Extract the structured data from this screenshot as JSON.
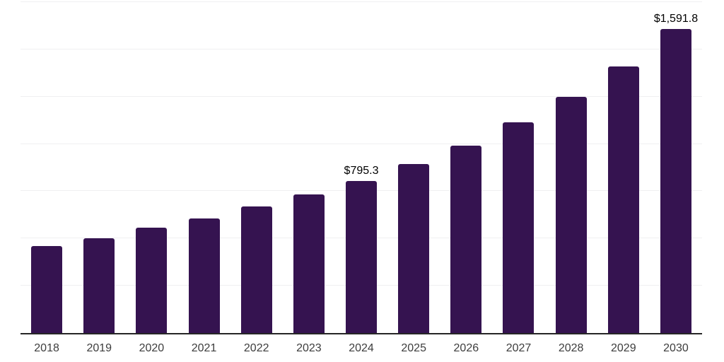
{
  "chart_data": {
    "type": "bar",
    "categories": [
      "2018",
      "2019",
      "2020",
      "2021",
      "2022",
      "2023",
      "2024",
      "2025",
      "2026",
      "2027",
      "2028",
      "2029",
      "2030"
    ],
    "values": [
      456.7,
      497.4,
      553.0,
      600.2,
      663.5,
      727.4,
      795.3,
      885.2,
      983.3,
      1103.0,
      1235.9,
      1397.4,
      1591.8
    ],
    "data_labels": [
      {
        "category": "2024",
        "text": "$795.3"
      },
      {
        "category": "2030",
        "text": "$1,591.8"
      }
    ],
    "title": "",
    "xlabel": "",
    "ylabel": "",
    "ylim": [
      0,
      1750
    ],
    "gridline_interval": 250,
    "grid": "horizontal",
    "y_axis_tick_labels_visible": false,
    "legend_position": "none",
    "colors": {
      "bar": "#351350",
      "axis_line": "#262626",
      "gridline": "#f0f0f1",
      "tick_label": "#3d3d3d",
      "data_label": "#000000",
      "background": "#ffffff"
    }
  }
}
